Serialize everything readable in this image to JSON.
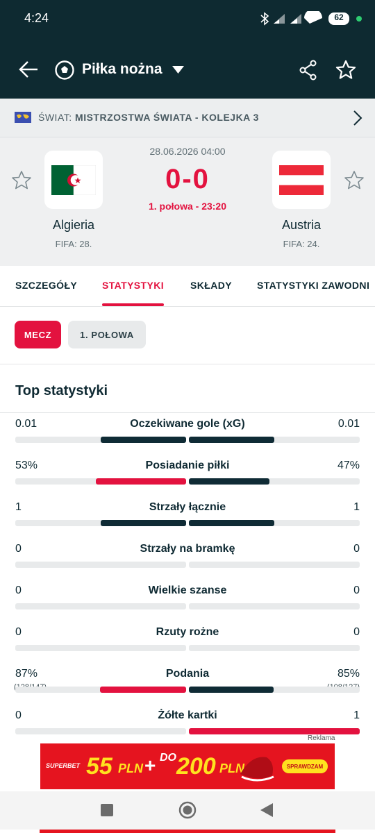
{
  "status_bar": {
    "time": "4:24",
    "battery": "62"
  },
  "header": {
    "title": "Piłka nożna"
  },
  "breadcrumb": {
    "country": "ŚWIAT:",
    "competition": "MISTRZOSTWA ŚWIATA - KOLEJKA 3"
  },
  "match": {
    "date": "28.06.2026 04:00",
    "score": "0-0",
    "status": "1. połowa - 23:20",
    "home": {
      "name": "Algieria",
      "rank": "FIFA: 28."
    },
    "away": {
      "name": "Austria",
      "rank": "FIFA: 24."
    }
  },
  "tabs": [
    "SZCZEGÓŁY",
    "STATYSTYKI",
    "SKŁADY",
    "STATYSTYKI ZAWODNI"
  ],
  "filters": [
    "MECZ",
    "1. POŁOWA"
  ],
  "section_title": "Top statystyki",
  "stats": [
    {
      "label": "Oczekiwane gole (xG)",
      "home": "0.01",
      "away": "0.01"
    },
    {
      "label": "Posiadanie piłki",
      "home": "53%",
      "away": "47%"
    },
    {
      "label": "Strzały łącznie",
      "home": "1",
      "away": "1"
    },
    {
      "label": "Strzały na bramkę",
      "home": "0",
      "away": "0"
    },
    {
      "label": "Wielkie szanse",
      "home": "0",
      "away": "0"
    },
    {
      "label": "Rzuty rożne",
      "home": "0",
      "away": "0"
    },
    {
      "label": "Podania",
      "home": "87%",
      "away": "85%",
      "home_detail": "(128/147)",
      "away_detail": "(108/127)"
    },
    {
      "label": "Żółte kartki",
      "home": "0",
      "away": "1"
    }
  ],
  "ad": {
    "label": "Reklama",
    "brand": "SUPERBET",
    "amount1": "55",
    "currency1": "PLN",
    "plus": "+",
    "prefix": "DO",
    "amount2": "200",
    "currency2": "PLN",
    "button": "SPRAWDZAM"
  }
}
